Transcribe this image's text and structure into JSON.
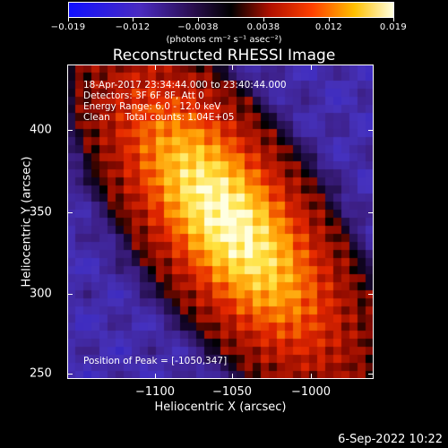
{
  "colorbar": {
    "tick_labels": [
      "−0.019",
      "−0.012",
      "−0.0038",
      "0.0038",
      "0.012",
      "0.019"
    ],
    "units": "(photons cm⁻² s⁻¹ asec⁻²)",
    "range": [
      -0.019,
      0.019
    ]
  },
  "plot": {
    "title": "Reconstructed RHESSI Image",
    "xlabel": "Heliocentric X (arcsec)",
    "ylabel": "Heliocentric Y (arcsec)",
    "x_tick_labels": [
      "−1100",
      "−1050",
      "−1000"
    ],
    "y_tick_labels": [
      "400",
      "350",
      "300",
      "250"
    ],
    "xlim": [
      -1148,
      -1040
    ],
    "ylim": [
      245,
      440
    ]
  },
  "info": {
    "line1": "18-Apr-2017 23:34:44.000 to 23:40:44.000",
    "line2": "Detectors: 3F 6F 8F, Att 0",
    "line3": "Energy Range: 6.0 - 12.0 keV",
    "line4": "Clean     Total counts: 1.04E+05",
    "peak": "Position of Peak = [-1050,347]"
  },
  "footer": {
    "timestamp": "6-Sep-2022 10:22"
  },
  "chart_data": {
    "type": "heatmap",
    "title": "Reconstructed RHESSI Image",
    "xlabel": "Heliocentric X (arcsec)",
    "ylabel": "Heliocentric Y (arcsec)",
    "peak_position": [
      -1050,
      347
    ],
    "colorbar_range": [
      -0.019,
      0.019
    ],
    "colormap": "blue-purple-black-red-yellow-white"
  }
}
